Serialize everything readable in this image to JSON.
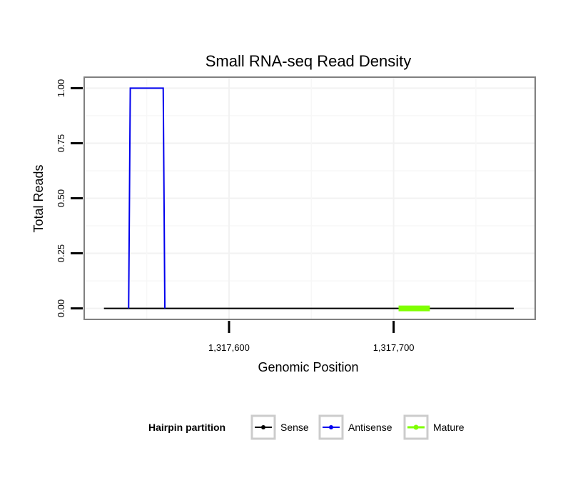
{
  "chart_data": {
    "type": "line",
    "title": "Small RNA-seq Read Density",
    "xlabel": "Genomic Position",
    "ylabel": "Total Reads",
    "xlim": [
      1317512,
      1317786
    ],
    "ylim": [
      -0.05,
      1.05
    ],
    "x_ticks": [
      1317600,
      1317700
    ],
    "x_tick_labels": [
      "1,317,600",
      "1,317,700"
    ],
    "y_ticks": [
      0,
      0.25,
      0.5,
      0.75,
      1.0
    ],
    "y_tick_labels": [
      "0.00",
      "0.25",
      "0.50",
      "0.75",
      "1.00"
    ],
    "grid": true,
    "legend": {
      "position": "bottom",
      "title": "Hairpin partition",
      "entries": [
        {
          "name": "Sense",
          "color": "#000000"
        },
        {
          "name": "Antisense",
          "color": "#0000ee"
        },
        {
          "name": "Mature",
          "color": "#7fff00"
        }
      ]
    },
    "series": [
      {
        "name": "Sense",
        "color": "#000000",
        "x": [
          1317524,
          1317773
        ],
        "y": [
          0,
          0
        ]
      },
      {
        "name": "Antisense",
        "color": "#0000ee",
        "x": [
          1317539,
          1317540,
          1317560,
          1317561
        ],
        "y": [
          0,
          1,
          1,
          0
        ]
      },
      {
        "name": "Mature",
        "color": "#7fff00",
        "x": [
          1317703,
          1317722
        ],
        "y": [
          0,
          0
        ]
      }
    ]
  }
}
